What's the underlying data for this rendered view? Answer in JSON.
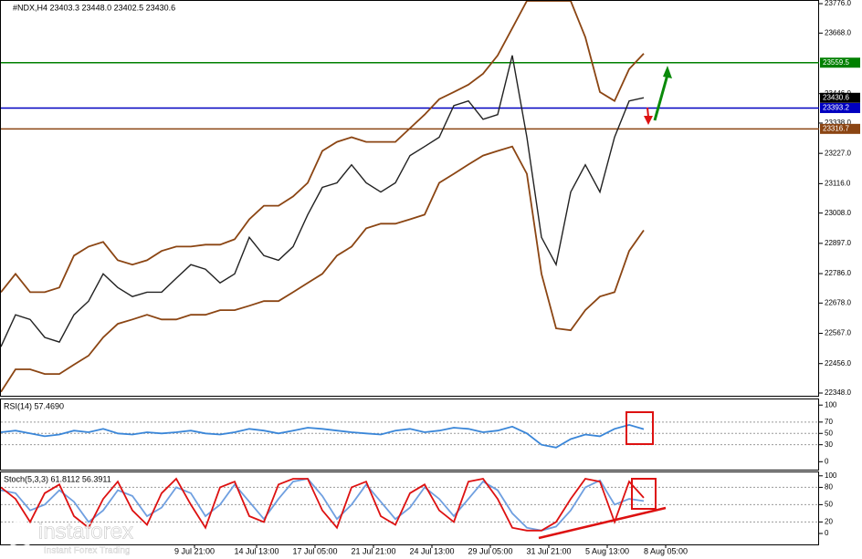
{
  "chart_data": [
    {
      "type": "line",
      "title": "#NDX,H4  23403.3 23448.0 23402.5 23430.6",
      "x": [
        0,
        4,
        8,
        12,
        16,
        20,
        24,
        28,
        32,
        36,
        40,
        44,
        48,
        52,
        56,
        60,
        64,
        68,
        72,
        76,
        80,
        84,
        88,
        92,
        96,
        100,
        104,
        108,
        112,
        116,
        120,
        124,
        128,
        132,
        136,
        140,
        144,
        148,
        152,
        156,
        160,
        164,
        168,
        172,
        176
      ],
      "xlim": [
        0,
        224
      ],
      "ylim": [
        22338,
        23786
      ],
      "yticks": [
        {
          "value": 23776,
          "label": "23776.0"
        },
        {
          "value": 23668,
          "label": "23668.0"
        },
        {
          "value": 23446,
          "label": "23446.0"
        },
        {
          "value": 23338,
          "label": "23338.0"
        },
        {
          "value": 23227,
          "label": "23227.0"
        },
        {
          "value": 23116,
          "label": "23116.0"
        },
        {
          "value": 23008,
          "label": "23008.0"
        },
        {
          "value": 22897,
          "label": "22897.0"
        },
        {
          "value": 22786,
          "label": "22786.0"
        },
        {
          "value": 22678,
          "label": "22678.0"
        },
        {
          "value": 22567,
          "label": "22567.0"
        },
        {
          "value": 22456,
          "label": "22456.0"
        },
        {
          "value": 22348,
          "label": "22348.0"
        }
      ],
      "levels": [
        {
          "value": 23559.5,
          "color": "#008000"
        },
        {
          "value": 23430.6,
          "color": "#000000"
        },
        {
          "value": 23393.2,
          "color": "#0000c0"
        },
        {
          "value": 23316.7,
          "color": "#8b4513"
        }
      ],
      "series": [
        {
          "color": "#8b4513",
          "values": [
            22718,
            22785,
            22718,
            22718,
            22735,
            22852,
            22885,
            22902,
            22835,
            22819,
            22835,
            22869,
            22885,
            22885,
            22892,
            22892,
            22912,
            22985,
            23035,
            23035,
            23069,
            23119,
            23236,
            23269,
            23286,
            23269,
            23269,
            23269,
            23319,
            23369,
            23426,
            23452,
            23479,
            23519,
            23586,
            23686,
            23786,
            23786,
            23786,
            23786,
            23653,
            23452,
            23419,
            23536,
            23593
          ]
        },
        {
          "color": "#8b4513",
          "values": [
            22352,
            22435,
            22435,
            22418,
            22418,
            22452,
            22485,
            22552,
            22602,
            22618,
            22635,
            22618,
            22618,
            22635,
            22635,
            22652,
            22652,
            22668,
            22685,
            22685,
            22718,
            22752,
            22785,
            22852,
            22885,
            22952,
            22969,
            22969,
            22985,
            23002,
            23119,
            23152,
            23186,
            23219,
            23236,
            23252,
            23152,
            22785,
            22585,
            22578,
            22652,
            22702,
            22718,
            22869,
            22945
          ]
        },
        {
          "color": "#222222",
          "values": [
            22518,
            22635,
            22618,
            22552,
            22535,
            22635,
            22685,
            22785,
            22735,
            22702,
            22718,
            22718,
            22769,
            22819,
            22802,
            22752,
            22785,
            22919,
            22852,
            22835,
            22885,
            23002,
            23102,
            23119,
            23185,
            23119,
            23085,
            23119,
            23219,
            23252,
            23286,
            23402,
            23419,
            23352,
            23369,
            23586,
            23286,
            22919,
            22819,
            23085,
            23185,
            23085,
            23286,
            23419,
            23431
          ]
        }
      ]
    },
    {
      "type": "line",
      "title": "RSI(14) 57.4690",
      "x": [
        0,
        4,
        8,
        12,
        16,
        20,
        24,
        28,
        32,
        36,
        40,
        44,
        48,
        52,
        56,
        60,
        64,
        68,
        72,
        76,
        80,
        84,
        88,
        92,
        96,
        100,
        104,
        108,
        112,
        116,
        120,
        124,
        128,
        132,
        136,
        140,
        144,
        148,
        152,
        156,
        160,
        164,
        168,
        172,
        176
      ],
      "xlim": [
        0,
        224
      ],
      "ylim": [
        -14,
        110
      ],
      "yticks": [
        100,
        70,
        50,
        30,
        0
      ],
      "grid": true,
      "series": [
        {
          "color": "#3a86d8",
          "values": [
            52,
            55,
            50,
            45,
            48,
            55,
            52,
            58,
            50,
            48,
            52,
            50,
            52,
            55,
            50,
            48,
            52,
            58,
            55,
            50,
            55,
            60,
            58,
            55,
            52,
            50,
            48,
            55,
            58,
            52,
            55,
            60,
            58,
            52,
            55,
            62,
            50,
            30,
            25,
            40,
            48,
            45,
            58,
            65,
            57.469
          ]
        }
      ]
    },
    {
      "type": "line",
      "title": "Stoch(5,3,3) 61.8112 56.3911",
      "x": [
        0,
        4,
        8,
        12,
        16,
        20,
        24,
        28,
        32,
        36,
        40,
        44,
        48,
        52,
        56,
        60,
        64,
        68,
        72,
        76,
        80,
        84,
        88,
        92,
        96,
        100,
        104,
        108,
        112,
        116,
        120,
        124,
        128,
        132,
        136,
        140,
        144,
        148,
        152,
        156,
        160,
        164,
        168,
        172,
        176
      ],
      "xlim": [
        0,
        224
      ],
      "ylim": [
        -19,
        106
      ],
      "yticks": [
        100,
        80,
        50,
        20,
        0
      ],
      "grid": true,
      "xticks": [
        {
          "value": 53,
          "label": "9 Jul 21:00"
        },
        {
          "value": 70,
          "label": "14 Jul 13:00"
        },
        {
          "value": 86,
          "label": "17 Jul 05:00"
        },
        {
          "value": 102,
          "label": "21 Jul 21:00"
        },
        {
          "value": 118,
          "label": "24 Jul 13:00"
        },
        {
          "value": 134,
          "label": "29 Jul 05:00"
        },
        {
          "value": 150,
          "label": "31 Jul 21:00"
        },
        {
          "value": 166,
          "label": "5 Aug 13:00"
        },
        {
          "value": 182,
          "label": "8 Aug 05:00"
        }
      ],
      "series": [
        {
          "color": "#6f9fe0",
          "values": [
            75,
            70,
            40,
            50,
            75,
            55,
            20,
            40,
            75,
            65,
            30,
            45,
            80,
            70,
            30,
            50,
            85,
            55,
            25,
            60,
            90,
            95,
            65,
            25,
            50,
            85,
            55,
            25,
            45,
            80,
            60,
            30,
            60,
            90,
            75,
            35,
            10,
            5,
            12,
            40,
            80,
            92,
            50,
            60,
            56.3911
          ]
        },
        {
          "color": "#dd1111",
          "values": [
            80,
            60,
            20,
            70,
            85,
            30,
            10,
            60,
            90,
            40,
            15,
            70,
            95,
            50,
            10,
            80,
            90,
            30,
            20,
            85,
            95,
            95,
            40,
            10,
            80,
            90,
            30,
            15,
            70,
            85,
            40,
            20,
            90,
            95,
            60,
            10,
            5,
            5,
            20,
            60,
            95,
            90,
            20,
            90,
            61.8112
          ]
        }
      ]
    }
  ],
  "watermark": {
    "brand": "instaforex",
    "tagline": "Instant Forex Trading"
  }
}
